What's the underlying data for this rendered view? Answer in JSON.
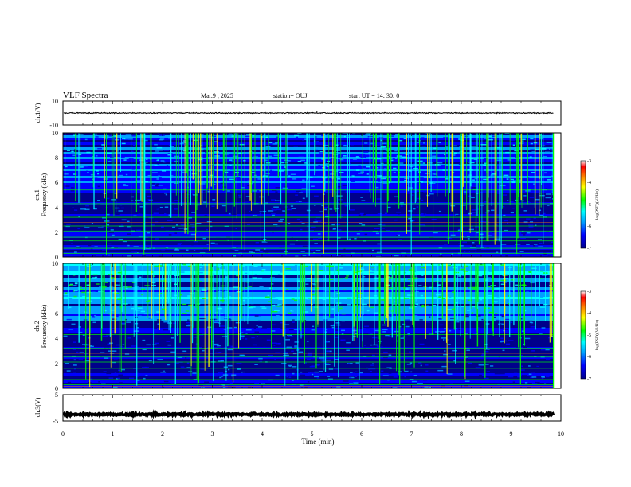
{
  "header": {
    "title": "VLF Spectra",
    "date": "Mar.9 , 2025",
    "station": "station= OUJ",
    "start_ut": "start UT = 14: 30: 0"
  },
  "chart_data": [
    {
      "type": "line",
      "panel": "ch1-waveform",
      "ylabel": "ch.1(V)",
      "ylim": [
        -10,
        10
      ],
      "y_ticks": [
        "10",
        "-10"
      ],
      "xlim": [
        0,
        10
      ],
      "trace": {
        "baseline": 0,
        "noise_amplitude": 0.4,
        "spikes": [
          {
            "x": 5.1,
            "y": 2
          },
          {
            "x": 9.0,
            "y": -1
          }
        ]
      },
      "end_x": 9.85
    },
    {
      "type": "heatmap",
      "panel": "ch1-spectrogram",
      "ylabel_line1": "ch.1",
      "ylabel_line2": "Frequency (kHz)",
      "ylim": [
        0,
        10
      ],
      "y_ticks": [
        "0",
        "2",
        "4",
        "6",
        "8",
        "10"
      ],
      "xlim": [
        0,
        10
      ],
      "end_x": 9.85,
      "color_scale": [
        "#00008b",
        "#0000ff",
        "#00a0ff",
        "#00ffff",
        "#00ff00",
        "#ffff00",
        "#ff8000",
        "#ff0000",
        "#ffffff"
      ],
      "colorbar": {
        "ticks": [
          "-3",
          "-4",
          "-5",
          "-6",
          "-7"
        ],
        "range": [
          -7,
          -3
        ],
        "label": "log(PSD)(V²/Hz)"
      }
    },
    {
      "type": "heatmap",
      "panel": "ch2-spectrogram",
      "ylabel_line1": "ch.2",
      "ylabel_line2": "Frequency (kHz)",
      "ylim": [
        0,
        10
      ],
      "y_ticks": [
        "0",
        "2",
        "4",
        "6",
        "8",
        "10"
      ],
      "xlim": [
        0,
        10
      ],
      "end_x": 9.85,
      "color_scale": [
        "#00008b",
        "#0000ff",
        "#00a0ff",
        "#00ffff",
        "#00ff00",
        "#ffff00",
        "#ff8000",
        "#ff0000",
        "#ffffff"
      ],
      "colorbar": {
        "ticks": [
          "-3",
          "-4",
          "-5",
          "-6",
          "-7"
        ],
        "range": [
          -7,
          -3
        ],
        "label": "log(PSD)(V²/Hz)"
      }
    },
    {
      "type": "line",
      "panel": "ch3-waveform",
      "ylabel": "ch.3(V)",
      "ylim": [
        -5,
        5
      ],
      "y_ticks": [
        "5",
        "-5"
      ],
      "xlim": [
        0,
        10
      ],
      "trace": {
        "baseline": -2.5,
        "noise_amplitude": 0.3
      },
      "end_x": 9.85
    }
  ],
  "x_axis": {
    "label": "Time (min)",
    "ticks": [
      "0",
      "1",
      "2",
      "3",
      "4",
      "5",
      "6",
      "7",
      "8",
      "9",
      "10"
    ]
  }
}
